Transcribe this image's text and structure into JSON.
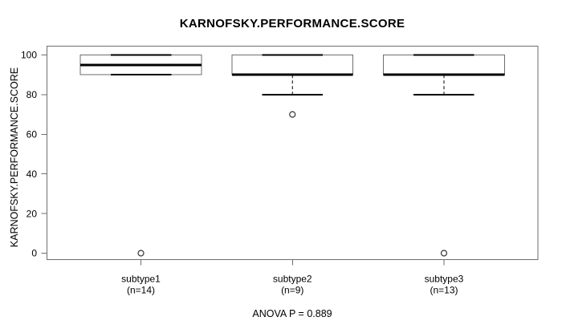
{
  "title": "KARNOFSKY.PERFORMANCE.SCORE",
  "footer_annotation": "ANOVA P = 0.889",
  "chart_data": {
    "type": "boxplot",
    "title": "KARNOFSKY.PERFORMANCE.SCORE",
    "ylabel": "KARNOFSKY.PERFORMANCE.SCORE",
    "xlabel": "",
    "annotation": "ANOVA P = 0.889",
    "ylim": [
      0,
      100
    ],
    "yticks": [
      0,
      20,
      40,
      60,
      80,
      100
    ],
    "grid": false,
    "legend": "none",
    "categories": [
      "subtype1",
      "subtype2",
      "subtype3"
    ],
    "category_sublabels": [
      "(n=14)",
      "(n=9)",
      "(n=13)"
    ],
    "series": [
      {
        "name": "subtype1",
        "n": 14,
        "whisker_low": 90,
        "q1": 90,
        "median": 95,
        "q3": 100,
        "whisker_high": 100,
        "outliers": [
          0
        ]
      },
      {
        "name": "subtype2",
        "n": 9,
        "whisker_low": 80,
        "q1": 90,
        "median": 90,
        "q3": 100,
        "whisker_high": 100,
        "outliers": [
          70
        ]
      },
      {
        "name": "subtype3",
        "n": 13,
        "whisker_low": 80,
        "q1": 90,
        "median": 90,
        "q3": 100,
        "whisker_high": 100,
        "outliers": [
          0
        ]
      }
    ],
    "colors": {
      "thin_line": "#6e6e6e",
      "emphasis_line": "#000000",
      "text": "#000000",
      "box_fill": "#ffffff",
      "background": "#ffffff"
    }
  }
}
